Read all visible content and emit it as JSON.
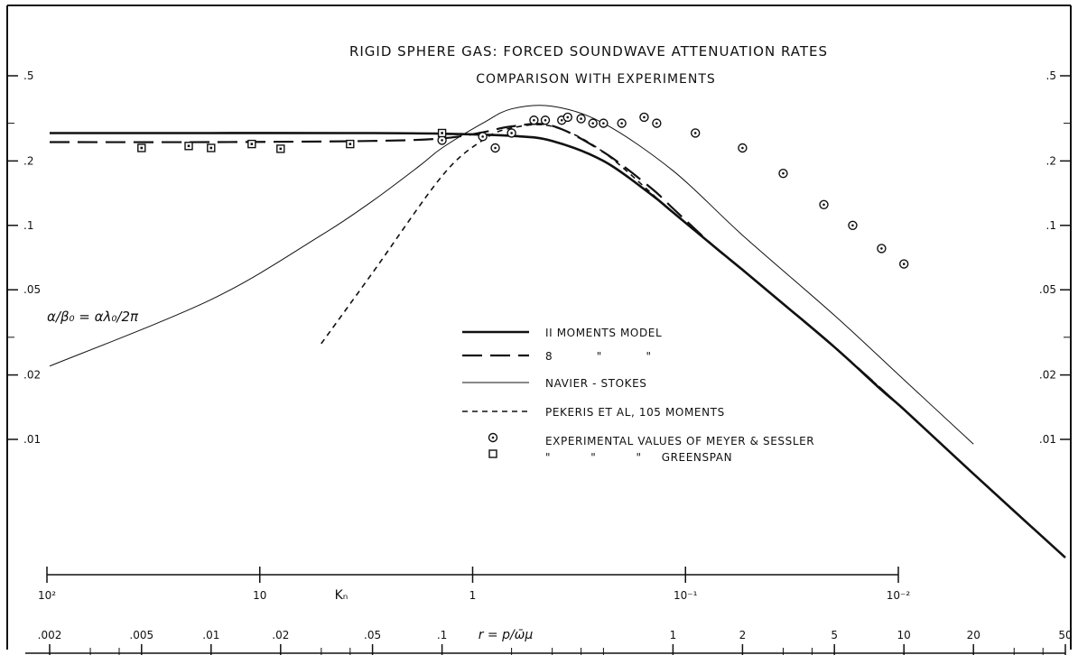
{
  "chart_data": {
    "type": "line",
    "title": "RIGID SPHERE GAS: FORCED SOUNDWAVE ATTENUATION RATES",
    "subtitle": "COMPARISON WITH EXPERIMENTS",
    "ylabel": "α/β₀ = αλ₀/2π",
    "y_scale": "log",
    "y_ticks": [
      ".5",
      ".2",
      ".1",
      ".05",
      ".02",
      ".01"
    ],
    "y_tick_values": [
      0.5,
      0.2,
      0.1,
      0.05,
      0.02,
      0.01
    ],
    "ylim": [
      0.005,
      0.9
    ],
    "x_axes": [
      {
        "label": "Kₙ",
        "scale": "log",
        "reversed": true,
        "tick_labels": [
          "10²",
          "10",
          "1",
          "10⁻¹",
          "10⁻²"
        ],
        "tick_values": [
          100,
          10,
          1,
          0.1,
          0.01
        ]
      },
      {
        "label": "r = p/ω̄μ",
        "scale": "log",
        "tick_labels": [
          ".002",
          ".005",
          ".01",
          ".02",
          ".05",
          ".1",
          "1",
          "2",
          "5",
          "10",
          "20",
          "50"
        ],
        "tick_values": [
          0.002,
          0.005,
          0.01,
          0.02,
          0.05,
          0.1,
          1,
          2,
          5,
          10,
          20,
          50
        ]
      }
    ],
    "legend_placement": "lower-center",
    "series": [
      {
        "name": "II MOMENTS MODEL",
        "style": "solid-thick",
        "x": [
          0.002,
          0.01,
          0.05,
          0.1,
          0.2,
          0.3,
          0.5,
          0.8,
          1,
          1.5,
          2,
          3,
          5,
          8,
          10,
          20,
          50
        ],
        "y": [
          0.27,
          0.27,
          0.27,
          0.268,
          0.262,
          0.248,
          0.2,
          0.14,
          0.115,
          0.08,
          0.062,
          0.043,
          0.027,
          0.017,
          0.0138,
          0.0069,
          0.0028
        ]
      },
      {
        "name": "8 \" \"",
        "style": "long-dash",
        "x": [
          0.002,
          0.01,
          0.05,
          0.1,
          0.15,
          0.2,
          0.3,
          0.5,
          0.8,
          1,
          1.5,
          2,
          3,
          5,
          10
        ],
        "y": [
          0.245,
          0.245,
          0.248,
          0.255,
          0.272,
          0.29,
          0.292,
          0.22,
          0.15,
          0.12,
          0.08,
          0.062,
          0.043,
          0.027,
          0.0138
        ]
      },
      {
        "name": "NAVIER-STOKES",
        "style": "solid-thin",
        "x": [
          0.002,
          0.01,
          0.03,
          0.05,
          0.08,
          0.1,
          0.15,
          0.2,
          0.3,
          0.5,
          1,
          2,
          5,
          10,
          20
        ],
        "y": [
          0.022,
          0.045,
          0.09,
          0.13,
          0.19,
          0.23,
          0.3,
          0.35,
          0.36,
          0.3,
          0.18,
          0.09,
          0.038,
          0.019,
          0.0095
        ]
      },
      {
        "name": "PEKERIS ET AL, 105 MOMENTS",
        "style": "short-dash",
        "x": [
          0.03,
          0.05,
          0.1,
          0.15,
          0.2,
          0.3,
          0.5,
          1,
          2,
          5,
          10
        ],
        "y": [
          0.028,
          0.06,
          0.17,
          0.25,
          0.285,
          0.29,
          0.22,
          0.115,
          0.062,
          0.027,
          0.0138
        ]
      },
      {
        "name": "EXPERIMENTAL VALUES OF MEYER & SESSLER",
        "style": "circle-markers",
        "x": [
          0.1,
          0.15,
          0.17,
          0.2,
          0.25,
          0.28,
          0.33,
          0.35,
          0.4,
          0.45,
          0.5,
          0.6,
          0.75,
          0.85,
          1.25,
          2,
          3,
          4.5,
          6,
          8,
          10
        ],
        "y": [
          0.25,
          0.26,
          0.23,
          0.27,
          0.31,
          0.31,
          0.31,
          0.32,
          0.315,
          0.3,
          0.3,
          0.3,
          0.32,
          0.3,
          0.27,
          0.23,
          0.175,
          0.125,
          0.1,
          0.078,
          0.066
        ]
      },
      {
        "name": "GREENSPAN",
        "style": "square-markers",
        "x": [
          0.005,
          0.008,
          0.01,
          0.015,
          0.02,
          0.04,
          0.1
        ],
        "y": [
          0.23,
          0.235,
          0.23,
          0.24,
          0.228,
          0.24,
          0.27
        ]
      }
    ],
    "legend_entries": [
      {
        "text": "II MOMENTS MODEL",
        "style": "solid-thick"
      },
      {
        "text": "8           \"           \"",
        "style": "long-dash"
      },
      {
        "text": "NAVIER - STOKES",
        "style": "solid-thin"
      },
      {
        "text": "PEKERIS ET AL, 105 MOMENTS",
        "style": "short-dash"
      },
      {
        "text": "EXPERIMENTAL VALUES OF MEYER & SESSLER",
        "style": "circle-markers"
      },
      {
        "text": "\"          \"          \"     GREENSPAN",
        "style": "square-markers"
      }
    ]
  }
}
